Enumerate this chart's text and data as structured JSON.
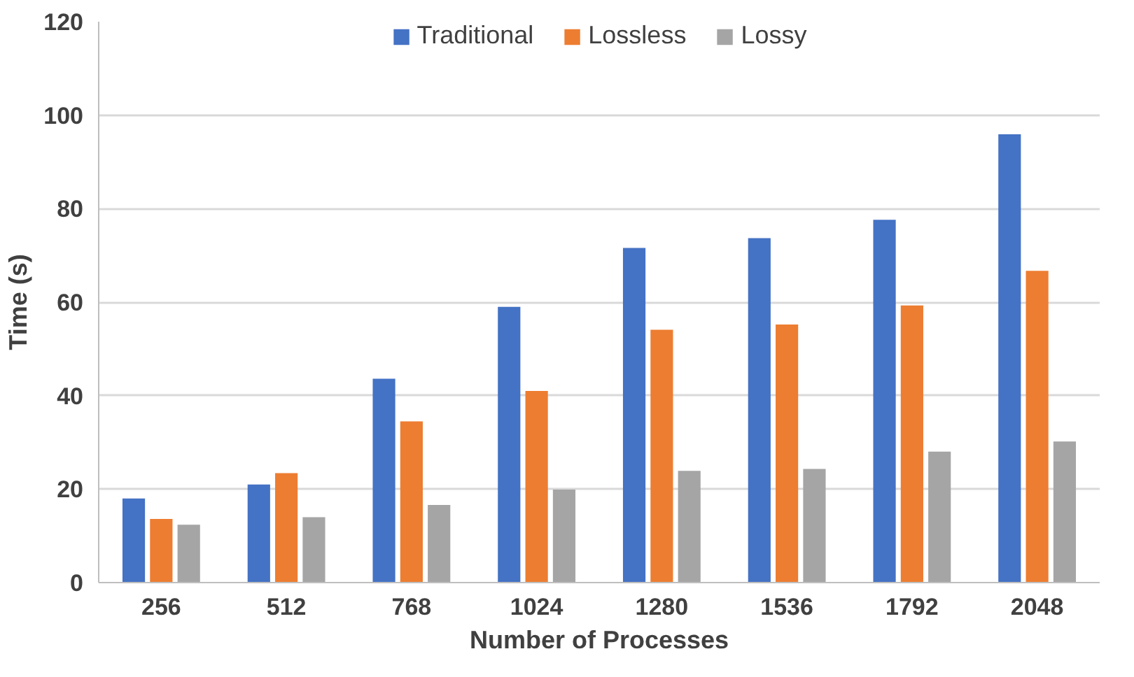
{
  "chart_data": {
    "type": "bar",
    "xlabel": "Number of Processes",
    "ylabel": "Time (s)",
    "categories": [
      "256",
      "512",
      "768",
      "1024",
      "1280",
      "1536",
      "1792",
      "2048"
    ],
    "series": [
      {
        "name": "Traditional",
        "color": "#4472c4",
        "values": [
          18,
          21,
          43.6,
          59,
          71.6,
          73.7,
          77.6,
          95.9
        ]
      },
      {
        "name": "Lossless",
        "color": "#ed7d31",
        "values": [
          13.6,
          23.4,
          34.5,
          41,
          54.1,
          55.2,
          59.3,
          66.7
        ]
      },
      {
        "name": "Lossy",
        "color": "#a5a5a5",
        "values": [
          12.4,
          14,
          16.6,
          19.9,
          23.9,
          24.3,
          28,
          30.2
        ]
      }
    ],
    "ylim": [
      0,
      120
    ],
    "yticks": [
      0,
      20,
      40,
      60,
      80,
      100,
      120
    ],
    "grid": "y",
    "legend": "top"
  }
}
